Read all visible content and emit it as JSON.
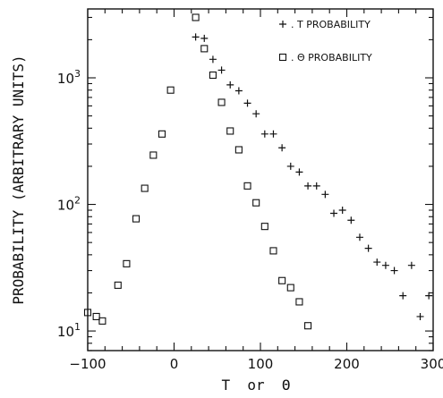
{
  "chart_data": {
    "type": "scatter",
    "title": "",
    "xlabel": "T  or  Θ",
    "ylabel": "PROBABILITY (ARBITRARY UNITS)",
    "xlim": [
      -100,
      300
    ],
    "ylim": [
      7,
      3500
    ],
    "yscale": "log",
    "grid": false,
    "legend_placement": "top-right",
    "x_ticks": [
      -100,
      0,
      100,
      200,
      300
    ],
    "x_tick_labels": [
      "−100",
      "0",
      "100",
      "200",
      "300"
    ],
    "y_ticks": [
      10,
      100,
      1000
    ],
    "y_tick_labels": [
      {
        "base": "10",
        "exp": "1"
      },
      {
        "base": "10",
        "exp": "2"
      },
      {
        "base": "10",
        "exp": "3"
      }
    ],
    "series": [
      {
        "name": ". T PROBABILITY",
        "marker": "plus",
        "x": [
          25,
          35,
          45,
          55,
          65,
          75,
          85,
          95,
          105,
          115,
          125,
          135,
          145,
          155,
          165,
          175,
          185,
          195,
          205,
          215,
          225,
          235,
          245,
          255,
          265,
          275,
          285,
          295
        ],
        "y": [
          2100,
          2050,
          1400,
          1150,
          880,
          790,
          630,
          520,
          360,
          360,
          280,
          200,
          180,
          140,
          140,
          120,
          85,
          90,
          75,
          55,
          45,
          35,
          33,
          30,
          19,
          33,
          13,
          19
        ]
      },
      {
        "name": ". Θ PROBABILITY",
        "marker": "square",
        "x": [
          -100,
          -90,
          -83,
          -65,
          -55,
          -44,
          -34,
          -24,
          -14,
          -4,
          25,
          35,
          45,
          55,
          65,
          75,
          85,
          95,
          105,
          115,
          125,
          135,
          145,
          155
        ],
        "y": [
          14,
          13,
          12,
          23,
          34,
          77,
          134,
          245,
          360,
          800,
          3000,
          1700,
          1050,
          640,
          380,
          270,
          140,
          103,
          67,
          43,
          25,
          22,
          17,
          11
        ]
      }
    ]
  }
}
